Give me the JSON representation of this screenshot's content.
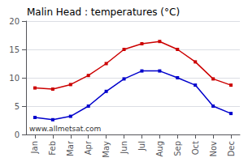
{
  "chart_data": {
    "type": "line",
    "title": "Malin Head : temperatures (°C)",
    "categories": [
      "Jan",
      "Feb",
      "Mar",
      "Apr",
      "May",
      "Jun",
      "Jul",
      "Aug",
      "Sep",
      "Oct",
      "Nov",
      "Dec"
    ],
    "series": [
      {
        "color": "#cc0000",
        "marker": "square",
        "values": [
          8.2,
          8.0,
          8.8,
          10.4,
          12.5,
          15.0,
          16.0,
          16.4,
          15.0,
          12.8,
          9.8,
          8.7
        ]
      },
      {
        "color": "#0000cc",
        "marker": "square",
        "values": [
          3.0,
          2.6,
          3.2,
          5.0,
          7.6,
          9.8,
          11.2,
          11.2,
          10.0,
          8.7,
          5.0,
          3.7
        ]
      }
    ],
    "ylim": [
      0,
      20
    ],
    "yticks": [
      0,
      5,
      10,
      15,
      20
    ],
    "grid": true,
    "annotation": "www.allmetsat.com"
  }
}
